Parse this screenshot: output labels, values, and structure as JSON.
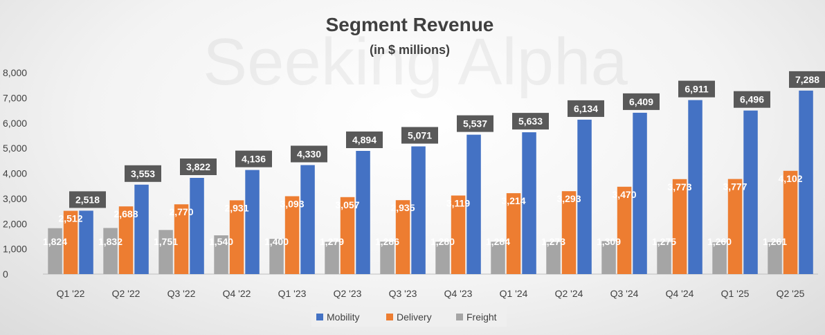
{
  "chart_data": {
    "type": "bar",
    "title": "Segment Revenue",
    "subtitle": "(in $ millions)",
    "watermark": "Seeking Alpha",
    "categories": [
      "Q1 '22",
      "Q2 '22",
      "Q3 '22",
      "Q4 '22",
      "Q1 '23",
      "Q2 '23",
      "Q3 '23",
      "Q4 '23",
      "Q1 '24",
      "Q2 '24",
      "Q3 '24",
      "Q4 '24",
      "Q1 '25",
      "Q2 '25"
    ],
    "series": [
      {
        "name": "Freight",
        "color": "#a5a5a5",
        "values": [
          1824,
          1832,
          1751,
          1540,
          1400,
          1279,
          1286,
          1280,
          1284,
          1273,
          1309,
          1275,
          1260,
          1261
        ],
        "labels": [
          "1,824",
          "1,832",
          "1,751",
          "1,540",
          "1,400",
          "1,279",
          "1,286",
          "1,280",
          "1,284",
          "1,273",
          "1,309",
          "1,275",
          "1,260",
          "1,261"
        ]
      },
      {
        "name": "Delivery",
        "color": "#ed7d31",
        "values": [
          2512,
          2688,
          2770,
          2931,
          3093,
          3057,
          2935,
          3119,
          3214,
          3293,
          3470,
          3773,
          3777,
          4102
        ],
        "labels": [
          "2,512",
          "2,688",
          "2,770",
          "2,931",
          "3,093",
          "3,057",
          "2,935",
          "3,119",
          "3,214",
          "3,293",
          "3,470",
          "3,773",
          "3,777",
          "4,102"
        ]
      },
      {
        "name": "Mobility",
        "color": "#4472c4",
        "values": [
          2518,
          3553,
          3822,
          4136,
          4330,
          4894,
          5071,
          5537,
          5633,
          6134,
          6409,
          6911,
          6496,
          7288
        ],
        "labels": [
          "2,518",
          "3,553",
          "3,822",
          "4,136",
          "4,330",
          "4,894",
          "5,071",
          "5,537",
          "5,633",
          "6,134",
          "6,409",
          "6,911",
          "6,496",
          "7,288"
        ]
      }
    ],
    "legend": [
      "Mobility",
      "Delivery",
      "Freight"
    ],
    "legend_position": "bottom",
    "ylim": [
      0,
      8000
    ],
    "yticks": [
      0,
      1000,
      2000,
      3000,
      4000,
      5000,
      6000,
      7000,
      8000
    ],
    "ytick_labels": [
      "0",
      "1,000",
      "2,000",
      "3,000",
      "4,000",
      "5,000",
      "6,000",
      "7,000",
      "8,000"
    ],
    "xlabel": "",
    "ylabel": "",
    "grid": false
  }
}
